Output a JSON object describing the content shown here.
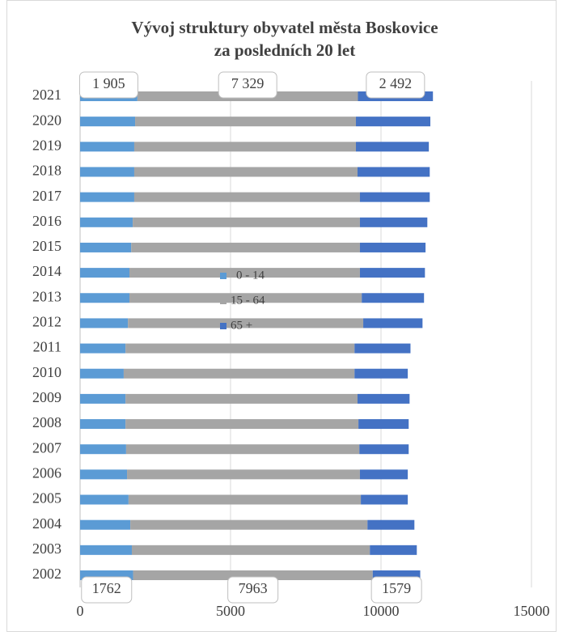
{
  "chart_data": {
    "type": "stacked_bar_horizontal",
    "title": "Vývoj struktury obyvatel města Boskovice",
    "subtitle": "za posledních 20 let",
    "categories": [
      "2002",
      "2003",
      "2004",
      "2005",
      "2006",
      "2007",
      "2008",
      "2009",
      "2010",
      "2011",
      "2012",
      "2013",
      "2014",
      "2015",
      "2016",
      "2017",
      "2018",
      "2019",
      "2020",
      "2021"
    ],
    "series": [
      {
        "name": "0 - 14",
        "color": "#5b9bd5",
        "values": [
          1762,
          1720,
          1670,
          1610,
          1560,
          1530,
          1510,
          1510,
          1450,
          1510,
          1590,
          1640,
          1640,
          1700,
          1750,
          1800,
          1800,
          1800,
          1829,
          1905
        ],
        "value_labels": [
          "1762",
          null,
          null,
          null,
          null,
          null,
          null,
          null,
          null,
          null,
          null,
          null,
          null,
          null,
          null,
          null,
          null,
          null,
          null,
          "1 905"
        ]
      },
      {
        "name": "15 - 64",
        "color": "#a5a5a5",
        "values": [
          7963,
          7910,
          7880,
          7720,
          7740,
          7750,
          7740,
          7710,
          7670,
          7610,
          7820,
          7720,
          7660,
          7600,
          7550,
          7500,
          7420,
          7367,
          7338,
          7329
        ],
        "value_labels": [
          "7963",
          null,
          null,
          null,
          null,
          null,
          null,
          null,
          null,
          null,
          null,
          null,
          null,
          null,
          null,
          null,
          null,
          null,
          null,
          "7 329"
        ]
      },
      {
        "name": "65 +",
        "color": "#4472c4",
        "values": [
          1579,
          1560,
          1560,
          1560,
          1590,
          1640,
          1670,
          1730,
          1770,
          1860,
          1970,
          2070,
          2160,
          2180,
          2240,
          2320,
          2400,
          2423,
          2473,
          2492
        ],
        "value_labels": [
          "1579",
          null,
          null,
          null,
          null,
          null,
          null,
          null,
          null,
          null,
          null,
          null,
          null,
          null,
          null,
          null,
          null,
          null,
          null,
          "2 492"
        ]
      }
    ],
    "xlim": [
      0,
      15000
    ],
    "xticks": [
      0,
      5000,
      10000,
      15000
    ],
    "grid": true,
    "legend": "right"
  }
}
